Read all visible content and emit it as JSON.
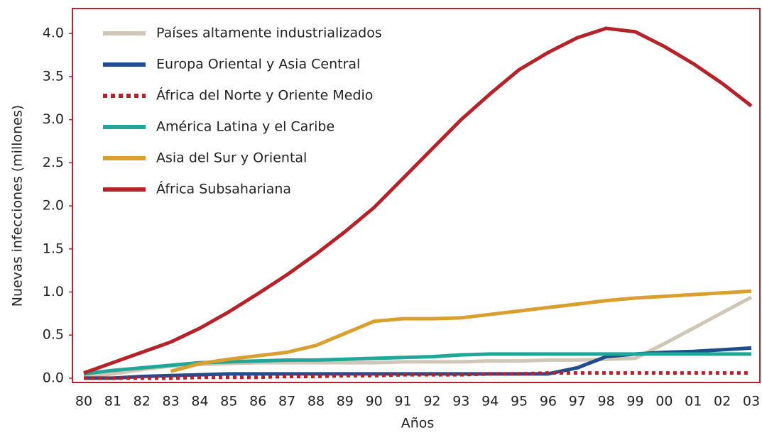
{
  "chart_data": {
    "type": "line",
    "xlabel": "Años",
    "ylabel": "Nuevas infecciones (millones)",
    "categories": [
      "80",
      "81",
      "82",
      "83",
      "84",
      "85",
      "86",
      "87",
      "88",
      "89",
      "90",
      "91",
      "92",
      "93",
      "94",
      "95",
      "96",
      "97",
      "98",
      "99",
      "00",
      "01",
      "02",
      "03"
    ],
    "ylim": [
      -0.05,
      4.29
    ],
    "yticks": [
      {
        "value": 0,
        "label": "0.0"
      },
      0.5,
      {
        "value": 1,
        "label": "1.0"
      },
      1.5,
      {
        "value": 2,
        "label": "2.0"
      },
      2.5,
      {
        "value": 3,
        "label": "3.0"
      },
      3.5,
      {
        "value": 4,
        "label": "4.0"
      }
    ],
    "legend": "upper left",
    "series": [
      {
        "name": "Países altamente industrializados",
        "color": "#cfc6b5",
        "style": "solid",
        "values": [
          0.02,
          0.05,
          0.1,
          0.14,
          0.16,
          0.17,
          0.18,
          0.18,
          0.18,
          0.18,
          0.18,
          0.19,
          0.19,
          0.19,
          0.2,
          0.2,
          0.21,
          0.21,
          0.22,
          0.23,
          0.4,
          0.58,
          0.76,
          0.94
        ]
      },
      {
        "name": "Europa Oriental y Asia Central",
        "color": "#1f4e8c",
        "style": "solid",
        "values": [
          0,
          0,
          0.02,
          0.03,
          0.04,
          0.05,
          0.05,
          0.05,
          0.05,
          0.05,
          0.05,
          0.05,
          0.05,
          0.05,
          0.05,
          0.05,
          0.05,
          0.12,
          0.25,
          0.28,
          0.3,
          0.31,
          0.33,
          0.35
        ]
      },
      {
        "name": "África del Norte y Oriente Medio",
        "color": "#b5232a",
        "style": "dotted",
        "values": [
          0,
          0,
          0,
          0,
          0.01,
          0.01,
          0.01,
          0.02,
          0.02,
          0.03,
          0.03,
          0.04,
          0.04,
          0.04,
          0.05,
          0.05,
          0.06,
          0.06,
          0.06,
          0.06,
          0.06,
          0.06,
          0.06,
          0.06
        ]
      },
      {
        "name": "América Latina y el Caribe",
        "color": "#1fa89a",
        "style": "solid",
        "values": [
          0.05,
          0.09,
          0.12,
          0.15,
          0.18,
          0.19,
          0.2,
          0.21,
          0.21,
          0.22,
          0.23,
          0.24,
          0.25,
          0.27,
          0.28,
          0.28,
          0.28,
          0.28,
          0.28,
          0.28,
          0.28,
          0.28,
          0.28,
          0.28
        ]
      },
      {
        "name": "Asia del Sur y Oriental",
        "color": "#d9a030",
        "style": "solid",
        "values": [
          null,
          null,
          null,
          0.08,
          0.17,
          0.22,
          0.26,
          0.3,
          0.38,
          0.52,
          0.66,
          0.69,
          0.69,
          0.7,
          0.74,
          0.78,
          0.82,
          0.86,
          0.9,
          0.93,
          0.95,
          0.97,
          0.99,
          1.01
        ]
      },
      {
        "name": "África Subsahariana",
        "color": "#b5232a",
        "style": "solid",
        "values": [
          0.06,
          0.18,
          0.3,
          0.42,
          0.58,
          0.77,
          0.98,
          1.2,
          1.44,
          1.7,
          1.98,
          2.32,
          2.66,
          3.0,
          3.3,
          3.58,
          3.78,
          3.95,
          4.06,
          4.02,
          3.85,
          3.65,
          3.42,
          3.16
        ]
      }
    ]
  }
}
